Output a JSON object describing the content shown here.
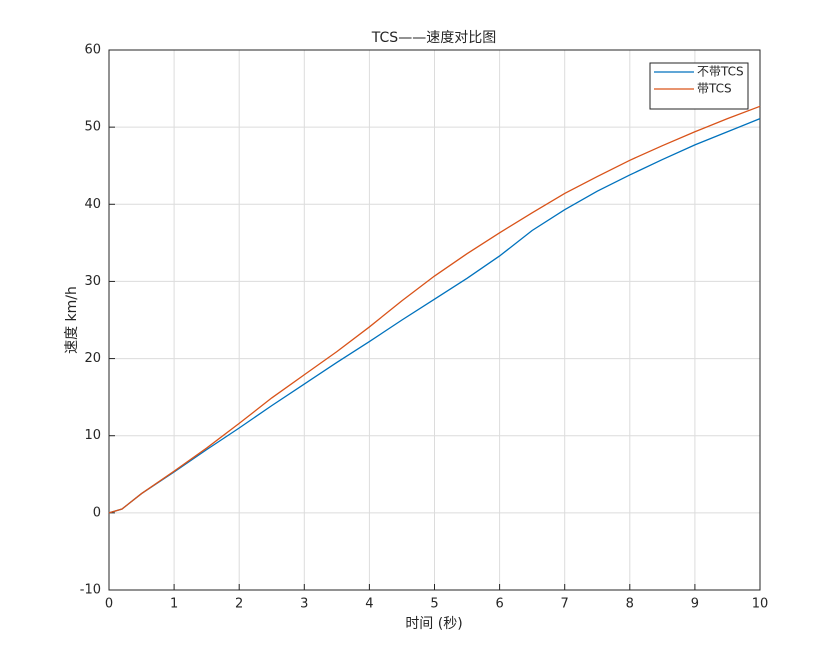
{
  "chart_data": {
    "type": "line",
    "title": "TCS——速度对比图",
    "x_label": "时间 (秒)",
    "y_label": "速度 km/h",
    "x": [
      0,
      0.2,
      0.5,
      1,
      1.5,
      2,
      2.5,
      3,
      3.5,
      4,
      4.5,
      5,
      5.5,
      6,
      6.5,
      7,
      7.5,
      8,
      8.5,
      9,
      9.5,
      10
    ],
    "series": [
      {
        "name": "不带TCS",
        "color": "#0072bd",
        "values": [
          0,
          0.5,
          2.5,
          5.3,
          8.2,
          11,
          13.9,
          16.7,
          19.5,
          22.2,
          25,
          27.7,
          30.4,
          33.3,
          36.6,
          39.3,
          41.7,
          43.8,
          45.8,
          47.7,
          49.4,
          51.1
        ]
      },
      {
        "name": "带TCS",
        "color": "#d95319",
        "values": [
          0,
          0.5,
          2.5,
          5.4,
          8.4,
          11.6,
          14.9,
          17.9,
          20.9,
          24.1,
          27.5,
          30.7,
          33.6,
          36.3,
          38.9,
          41.4,
          43.6,
          45.7,
          47.6,
          49.4,
          51.1,
          52.7
        ]
      }
    ],
    "xlim": [
      0,
      10
    ],
    "xticks": [
      0,
      1,
      2,
      3,
      4,
      5,
      6,
      7,
      8,
      9,
      10
    ],
    "ylim": [
      -10,
      60
    ],
    "yticks": [
      -10,
      0,
      10,
      20,
      30,
      40,
      50,
      60
    ],
    "grid": true,
    "legend": "northeast"
  }
}
